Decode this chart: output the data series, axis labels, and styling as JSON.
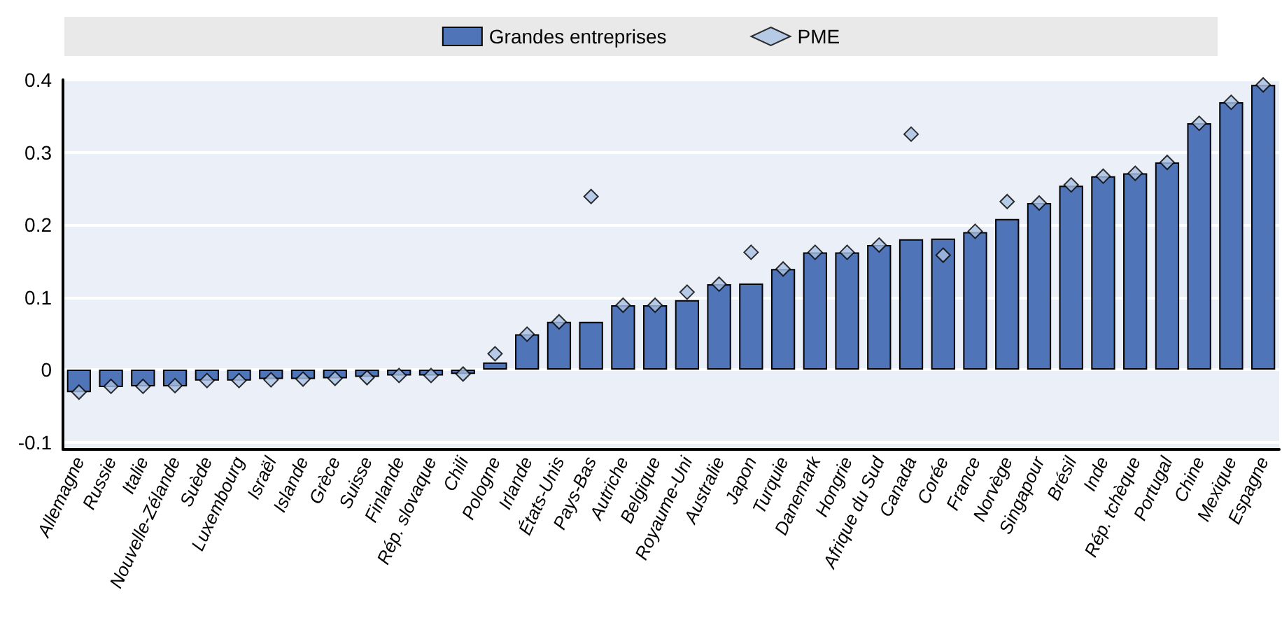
{
  "chart_data": {
    "type": "bar",
    "categories": [
      "Allemagne",
      "Russie",
      "Italie",
      "Nouvelle-Zélande",
      "Suède",
      "Luxembourg",
      "Israël",
      "Islande",
      "Grèce",
      "Suisse",
      "Finlande",
      "Rép. slovaque",
      "Chili",
      "Pologne",
      "Irlande",
      "États-Unis",
      "Pays-Bas",
      "Autriche",
      "Belgique",
      "Royaume-Uni",
      "Australie",
      "Japon",
      "Turquie",
      "Danemark",
      "Hongrie",
      "Afrique du Sud",
      "Canada",
      "Corée",
      "France",
      "Norvège",
      "Singapour",
      "Brésil",
      "Inde",
      "Rép. tchèque",
      "Portugal",
      "Chine",
      "Mexique",
      "Espagne"
    ],
    "series": [
      {
        "name": "Grandes entreprises",
        "color": "#4f74b8",
        "values": [
          -0.031,
          -0.024,
          -0.023,
          -0.023,
          -0.015,
          -0.015,
          -0.013,
          -0.013,
          -0.012,
          -0.01,
          -0.008,
          -0.008,
          -0.006,
          0.01,
          0.049,
          0.066,
          0.066,
          0.089,
          0.089,
          0.096,
          0.118,
          0.119,
          0.139,
          0.162,
          0.162,
          0.172,
          0.18,
          0.181,
          0.19,
          0.208,
          0.23,
          0.254,
          0.267,
          0.271,
          0.286,
          0.34,
          0.369,
          0.393
        ]
      },
      {
        "name": "PME",
        "type": "scatter",
        "marker": "diamond",
        "color": "#a9c1e3",
        "x": [
          "Allemagne",
          "Russie",
          "Italie",
          "Nouvelle-Zélande",
          "Suède",
          "Luxembourg",
          "Israël",
          "Islande",
          "Grèce",
          "Suisse",
          "Finlande",
          "Rép. slovaque",
          "Chili",
          "Pologne",
          "Irlande",
          "États-Unis",
          "Pays-Bas",
          "Autriche",
          "Belgique",
          "Royaume-Uni",
          "Australie",
          "Japon",
          "Turquie",
          "Danemark",
          "Hongrie",
          "Afrique du Sud",
          "Canada",
          "Corée",
          "France",
          "Norvège",
          "Singapour",
          "Brésil",
          "Inde",
          "Rép. tchèque",
          "Portugal",
          "Chine",
          "Mexique",
          "Espagne"
        ],
        "values": [
          -0.031,
          -0.023,
          -0.023,
          -0.022,
          -0.015,
          -0.015,
          -0.014,
          -0.013,
          -0.012,
          -0.011,
          -0.008,
          -0.008,
          -0.006,
          0.022,
          0.049,
          0.066,
          0.239,
          0.089,
          0.089,
          0.107,
          0.118,
          0.162,
          0.139,
          0.162,
          0.162,
          0.172,
          0.325,
          0.158,
          0.191,
          0.232,
          0.23,
          0.255,
          0.267,
          0.271,
          0.286,
          0.34,
          0.369,
          0.393
        ]
      }
    ],
    "ylim": [
      -0.11,
      0.4
    ],
    "yticks": [
      -0.1,
      0,
      0.1,
      0.2,
      0.3,
      0.4
    ],
    "grid": "y",
    "legend": "top"
  }
}
